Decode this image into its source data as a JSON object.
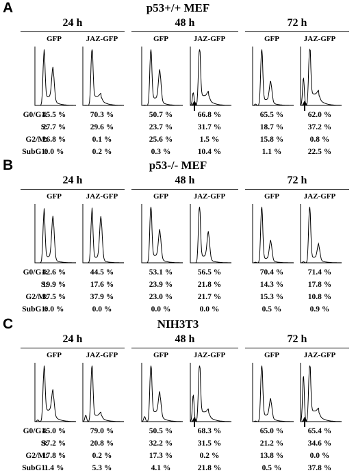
{
  "chart_data": [
    {
      "panel": "A",
      "title": "p53+/+ MEF",
      "type": "table",
      "timepoints": [
        "24 h",
        "48 h",
        "72 h"
      ],
      "conditions": [
        "GFP",
        "JAZ-GFP"
      ],
      "row_labels": [
        "G0/G1:",
        "S:",
        "G2/M:",
        "SubG1:"
      ],
      "values": [
        [
          "45.5 %",
          "70.3 %",
          "50.7 %",
          "66.8 %",
          "65.5 %",
          "62.0 %"
        ],
        [
          "27.7 %",
          "29.6 %",
          "23.7 %",
          "31.7 %",
          "18.7 %",
          "37.2 %"
        ],
        [
          "26.8 %",
          "0.1 %",
          "25.6 %",
          "1.5 %",
          "15.8 %",
          "0.8 %"
        ],
        [
          "0.0 %",
          "0.2 %",
          "0.3 %",
          "10.4 %",
          "1.1 %",
          "22.5 %"
        ]
      ],
      "arrows": [
        false,
        false,
        false,
        true,
        false,
        true
      ]
    },
    {
      "panel": "B",
      "title": "p53-/- MEF",
      "type": "table",
      "timepoints": [
        "24 h",
        "48 h",
        "72 h"
      ],
      "conditions": [
        "GFP",
        "JAZ-GFP"
      ],
      "row_labels": [
        "G0/G1:",
        "S:",
        "G2/M:",
        "SubG1:"
      ],
      "values": [
        [
          "42.6 %",
          "44.5 %",
          "53.1 %",
          "56.5 %",
          "70.4 %",
          "71.4 %"
        ],
        [
          "19.9 %",
          "17.6 %",
          "23.9 %",
          "21.8 %",
          "14.3 %",
          "17.8 %"
        ],
        [
          "37.5 %",
          "37.9 %",
          "23.0 %",
          "21.7 %",
          "15.3 %",
          "10.8 %"
        ],
        [
          "0.0 %",
          "0.0 %",
          "0.0 %",
          "0.0 %",
          "0.5 %",
          "0.9 %"
        ]
      ],
      "arrows": [
        false,
        false,
        false,
        false,
        false,
        false
      ]
    },
    {
      "panel": "C",
      "title": "NIH3T3",
      "type": "table",
      "timepoints": [
        "24 h",
        "48 h",
        "72 h"
      ],
      "conditions": [
        "GFP",
        "JAZ-GFP"
      ],
      "row_labels": [
        "G0/G1:",
        "S:",
        "G2/M:",
        "SubG1:"
      ],
      "values": [
        [
          "45.0 %",
          "79.0 %",
          "50.5 %",
          "68.3 %",
          "65.0 %",
          "65.4 %"
        ],
        [
          "37.2 %",
          "20.8 %",
          "32.2 %",
          "31.5 %",
          "21.2 %",
          "34.6 %"
        ],
        [
          "17.8 %",
          "0.2 %",
          "17.3 %",
          "0.2 %",
          "13.8 %",
          "0.0 %"
        ],
        [
          "1.4 %",
          "5.3 %",
          "4.1 %",
          "21.8 %",
          "0.5 %",
          "37.8 %"
        ]
      ],
      "arrows": [
        false,
        false,
        false,
        true,
        false,
        true
      ]
    }
  ]
}
